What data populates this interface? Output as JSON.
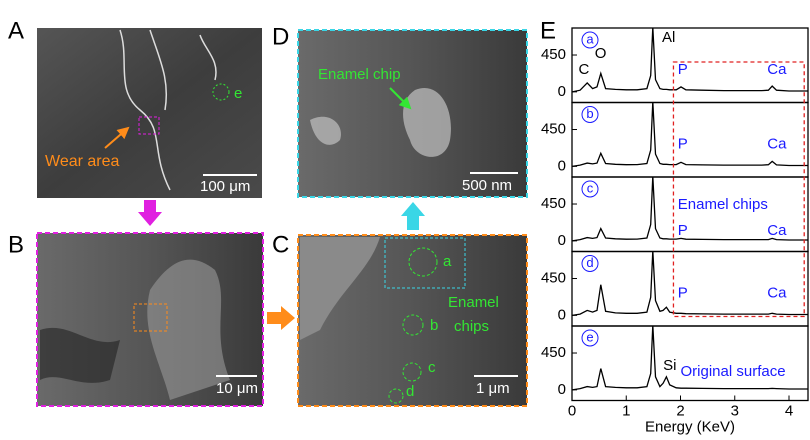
{
  "panels": {
    "A": {
      "label": "A",
      "annotation": "Wear area",
      "site": "e",
      "scale_bar": "100 μm"
    },
    "B": {
      "label": "B",
      "scale_bar": "10 μm"
    },
    "C": {
      "label": "C",
      "sites": [
        "a",
        "b",
        "c",
        "d"
      ],
      "annotation": [
        "Enamel",
        "chips"
      ],
      "scale_bar": "1 μm"
    },
    "D": {
      "label": "D",
      "annotation": "Enamel chip",
      "scale_bar": "500 nm"
    },
    "E": {
      "label": "E"
    }
  },
  "chart_data": {
    "type": "line",
    "xlabel": "Energy (KeV)",
    "x": [
      0,
      0.15,
      0.28,
      0.38,
      0.46,
      0.53,
      0.62,
      0.8,
      1.0,
      1.2,
      1.38,
      1.45,
      1.49,
      1.54,
      1.62,
      1.68,
      1.74,
      1.8,
      1.92,
      2.01,
      2.1,
      2.4,
      2.8,
      3.2,
      3.5,
      3.62,
      3.69,
      3.77,
      4.0,
      4.35
    ],
    "xlim": [
      0,
      4.35
    ],
    "xticks": [
      0,
      1,
      2,
      3,
      4
    ],
    "ylim": [
      -130,
      780
    ],
    "yticks": [
      0,
      450
    ],
    "series": [
      {
        "name": "a",
        "color": "#000000",
        "values": [
          0,
          20,
          110,
          40,
          60,
          225,
          40,
          30,
          25,
          25,
          40,
          200,
          790,
          150,
          40,
          30,
          30,
          25,
          25,
          60,
          25,
          20,
          15,
          15,
          15,
          20,
          70,
          20,
          10,
          10
        ]
      },
      {
        "name": "b",
        "color": "#000000",
        "values": [
          0,
          15,
          40,
          30,
          40,
          160,
          35,
          25,
          20,
          22,
          35,
          200,
          790,
          150,
          35,
          25,
          25,
          22,
          22,
          50,
          22,
          18,
          15,
          15,
          15,
          20,
          60,
          18,
          10,
          10
        ]
      },
      {
        "name": "c",
        "color": "#000000",
        "values": [
          0,
          15,
          40,
          30,
          40,
          150,
          35,
          25,
          20,
          22,
          35,
          200,
          790,
          150,
          35,
          25,
          25,
          22,
          22,
          30,
          20,
          18,
          15,
          15,
          15,
          15,
          30,
          15,
          10,
          10
        ]
      },
      {
        "name": "d",
        "color": "#000000",
        "values": [
          0,
          15,
          60,
          40,
          60,
          375,
          50,
          30,
          25,
          25,
          40,
          220,
          790,
          180,
          50,
          60,
          100,
          40,
          25,
          25,
          20,
          18,
          15,
          15,
          15,
          15,
          25,
          15,
          10,
          10
        ]
      },
      {
        "name": "e",
        "color": "#000000",
        "values": [
          0,
          15,
          40,
          30,
          40,
          260,
          40,
          30,
          25,
          25,
          40,
          200,
          790,
          160,
          40,
          80,
          160,
          60,
          25,
          20,
          20,
          18,
          15,
          15,
          15,
          15,
          18,
          15,
          10,
          10
        ]
      }
    ],
    "annotations": {
      "al": "Al",
      "c": "C",
      "o": "O",
      "si": "Si",
      "p": "P",
      "ca": "Ca",
      "enamel_chips": "Enamel chips",
      "original_surface": "Original surface"
    }
  }
}
